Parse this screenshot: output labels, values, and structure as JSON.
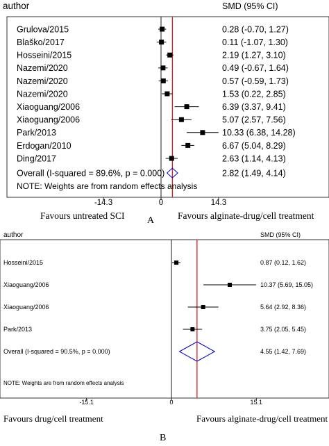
{
  "chart_data": [
    {
      "type": "forest",
      "panel_label": "A",
      "header": {
        "study": "author",
        "effect": "SMD (95% CI)"
      },
      "x_ticks": [
        -14.3,
        0,
        14.3
      ],
      "x_tick_labels": [
        "-14.3",
        "0",
        "14.3"
      ],
      "favours_left": "Favours untreated SCI",
      "favours_right": "Favours alginate-drug/cell treatment",
      "studies": [
        {
          "label": "Grulova/2015",
          "smd": 0.28,
          "lo": -0.7,
          "hi": 1.27,
          "ci_text": "0.28 (-0.70, 1.27)"
        },
        {
          "label": "Blaško/2017",
          "smd": 0.11,
          "lo": -1.07,
          "hi": 1.3,
          "ci_text": "0.11 (-1.07, 1.30)"
        },
        {
          "label": "Hosseini/2015",
          "smd": 2.19,
          "lo": 1.27,
          "hi": 3.1,
          "ci_text": "2.19 (1.27, 3.10)"
        },
        {
          "label": "Nazemi/2020",
          "smd": 0.49,
          "lo": -0.67,
          "hi": 1.64,
          "ci_text": "0.49 (-0.67, 1.64)"
        },
        {
          "label": "Nazemi/2020",
          "smd": 0.57,
          "lo": -0.59,
          "hi": 1.73,
          "ci_text": "0.57 (-0.59, 1.73)"
        },
        {
          "label": "Nazemi/2020",
          "smd": 1.53,
          "lo": 0.22,
          "hi": 2.85,
          "ci_text": "1.53 (0.22, 2.85)"
        },
        {
          "label": "Xiaoguang/2006",
          "smd": 6.39,
          "lo": 3.37,
          "hi": 9.41,
          "ci_text": "6.39 (3.37, 9.41)"
        },
        {
          "label": "Xiaoguang/2006",
          "smd": 5.07,
          "lo": 2.57,
          "hi": 7.56,
          "ci_text": "5.07 (2.57, 7.56)"
        },
        {
          "label": "Park/2013",
          "smd": 10.33,
          "lo": 6.38,
          "hi": 14.28,
          "ci_text": "10.33 (6.38, 14.28)"
        },
        {
          "label": "Erdogan/2010",
          "smd": 6.67,
          "lo": 5.04,
          "hi": 8.29,
          "ci_text": "6.67 (5.04, 8.29)"
        },
        {
          "label": "Ding/2017",
          "smd": 2.63,
          "lo": 1.14,
          "hi": 4.13,
          "ci_text": "2.63 (1.14, 4.13)"
        }
      ],
      "overall": {
        "label": "Overall  (I-squared = 89.6%, p = 0.000)",
        "smd": 2.82,
        "lo": 1.49,
        "hi": 4.14,
        "ci_text": "2.82 (1.49, 4.14)"
      },
      "note": "NOTE: Weights are from random effects analysis"
    },
    {
      "type": "forest",
      "panel_label": "B",
      "header": {
        "study": "author",
        "effect": "SMD (95% CI)"
      },
      "x_ticks": [
        -15.1,
        0,
        15.1
      ],
      "x_tick_labels": [
        "-15.1",
        "0",
        "15.1"
      ],
      "favours_left": "Favours drug/cell treatment",
      "favours_right": "Favours alginate-drug/cell treatment",
      "studies": [
        {
          "label": "Hosseini/2015",
          "smd": 0.87,
          "lo": 0.12,
          "hi": 1.62,
          "ci_text": "0.87 (0.12, 1.62)"
        },
        {
          "label": "Xiaoguang/2006",
          "smd": 10.37,
          "lo": 5.69,
          "hi": 15.05,
          "ci_text": "10.37 (5.69, 15.05)"
        },
        {
          "label": "Xiaoguang/2006",
          "smd": 5.64,
          "lo": 2.92,
          "hi": 8.36,
          "ci_text": "5.64 (2.92, 8.36)"
        },
        {
          "label": "Park/2013",
          "smd": 3.75,
          "lo": 2.05,
          "hi": 5.45,
          "ci_text": "3.75 (2.05, 5.45)"
        }
      ],
      "overall": {
        "label": "Overall  (I-squared = 90.5%, p = 0.000)",
        "smd": 4.55,
        "lo": 1.42,
        "hi": 7.69,
        "ci_text": "4.55 (1.42, 7.69)"
      },
      "note": "NOTE: Weights are from random effects analysis"
    }
  ]
}
